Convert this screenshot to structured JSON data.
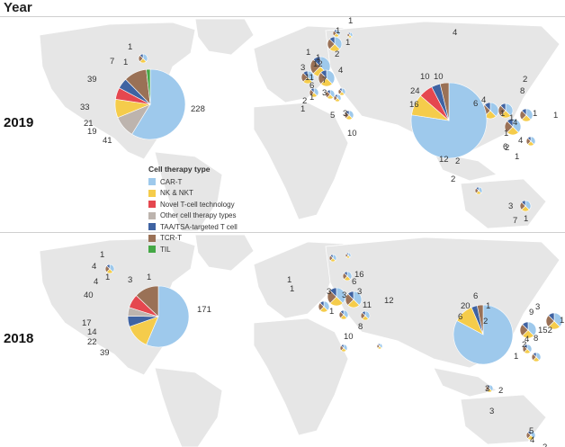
{
  "header": {
    "title": "Year"
  },
  "legend": {
    "title": "Cell therapy type",
    "items": [
      {
        "label": "CAR-T",
        "color": "#9ec9ec"
      },
      {
        "label": "NK & NKT",
        "color": "#f5cc4b"
      },
      {
        "label": "Novel T-cell technology",
        "color": "#e5474f"
      },
      {
        "label": "Other cell therapy types",
        "color": "#bdb4ae"
      },
      {
        "label": "TAA/TSA-targeted T cell",
        "color": "#3f63a2"
      },
      {
        "label": "TCR-T",
        "color": "#9a7156"
      },
      {
        "label": "TIL",
        "color": "#44a845"
      }
    ]
  },
  "rows": [
    {
      "year": "2019",
      "us_pie": {
        "values": [
          228,
          39,
          33,
          21,
          19,
          41,
          7
        ],
        "labels": [
          "228",
          "39",
          "33",
          "21",
          "19",
          "41",
          "7"
        ]
      },
      "china_pie": {
        "values": [
          24,
          16,
          10,
          10
        ],
        "labels": [
          "24",
          "16",
          "10",
          "10"
        ]
      },
      "other_labels": [
        "1",
        "1",
        "1",
        "1",
        "1",
        "1",
        "1",
        "12",
        "3",
        "11",
        "6",
        "3",
        "2",
        "1",
        "7",
        "3",
        "10",
        "4",
        "8",
        "2",
        "1",
        "1",
        "4",
        "1",
        "4",
        "6",
        "1",
        "12",
        "2",
        "2",
        "3",
        "7",
        "1",
        "2",
        "4",
        "4",
        "6",
        "1",
        "1",
        "2",
        "1",
        "5"
      ]
    },
    {
      "year": "2018",
      "us_pie": {
        "values": [
          171,
          40,
          17,
          14,
          22,
          39
        ],
        "labels": [
          "171",
          "40",
          "17",
          "14",
          "22",
          "39"
        ]
      },
      "china_pie": {
        "values": [
          20,
          6,
          6
        ],
        "labels": [
          "20",
          "6",
          "6"
        ]
      },
      "other_labels": [
        "4",
        "1",
        "4",
        "1",
        "3",
        "1",
        "1",
        "1",
        "3",
        "1",
        "3",
        "6",
        "16",
        "3",
        "11",
        "12",
        "8",
        "10",
        "1",
        "2",
        "1",
        "2",
        "152",
        "4",
        "8",
        "1",
        "9",
        "3",
        "3",
        "2",
        "3",
        "4",
        "2",
        "5"
      ]
    }
  ]
}
